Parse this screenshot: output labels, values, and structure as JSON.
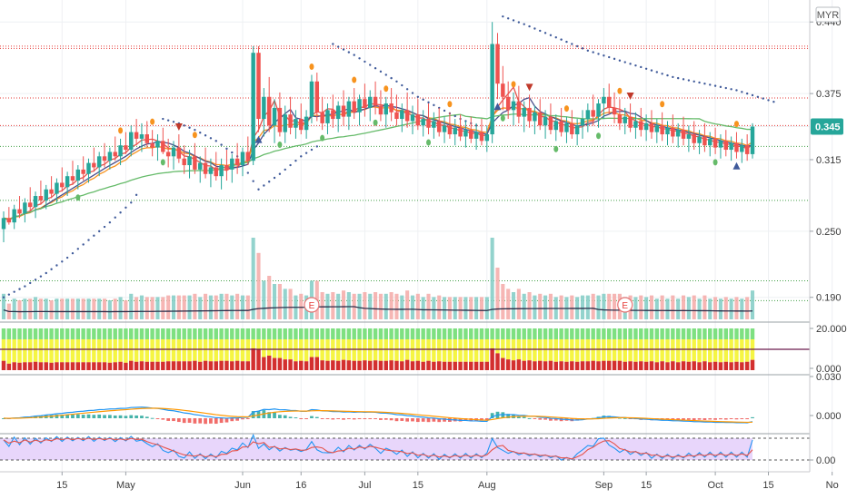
{
  "currency": "MYR",
  "colors": {
    "up": "#26a69a",
    "down": "#ef5350",
    "grid": "#eef0f3",
    "sma_fast": "#e5534b",
    "ema_mid": "#f7931e",
    "sma_slow": "#66bb6a",
    "sma_dark": "#4b4f8c",
    "psar": "#3f5a9a",
    "macd": "#2196f3",
    "signal": "#ff9800",
    "stoch_k": "#2196f3",
    "stoch_d": "#e5534b",
    "stoch_bg": "#e8d6fb",
    "res_line": "#e53935",
    "sup_line": "#43a047",
    "current_price_bg": "#26a69a"
  },
  "chart_data": {
    "type": "candlestick",
    "x_ticks": [
      {
        "label": "15",
        "i": 11
      },
      {
        "label": "May",
        "i": 23
      },
      {
        "label": "Jun",
        "i": 45
      },
      {
        "label": "16",
        "i": 56
      },
      {
        "label": "Jul",
        "i": 68
      },
      {
        "label": "15",
        "i": 78
      },
      {
        "label": "Aug",
        "i": 91
      },
      {
        "label": "Sep",
        "i": 113
      },
      {
        "label": "15",
        "i": 121
      },
      {
        "label": "Oct",
        "i": 134
      },
      {
        "label": "15",
        "i": 144
      },
      {
        "label": "No",
        "i": 156
      }
    ],
    "price_axis": {
      "ticks": [
        "0.440",
        "0.375",
        "0.345",
        "0.315",
        "0.250",
        "0.190"
      ],
      "range": [
        0.17,
        0.455
      ]
    },
    "current_price": {
      "label": "0.345",
      "value": 0.345
    },
    "resistance_levels": [
      0.418,
      0.416,
      0.371,
      0.346
    ],
    "support_levels": [
      0.327,
      0.278,
      0.205,
      0.187
    ],
    "ohlc": [
      [
        0.252,
        0.268,
        0.24,
        0.262
      ],
      [
        0.262,
        0.272,
        0.256,
        0.258
      ],
      [
        0.258,
        0.274,
        0.252,
        0.27
      ],
      [
        0.27,
        0.282,
        0.262,
        0.266
      ],
      [
        0.266,
        0.28,
        0.258,
        0.276
      ],
      [
        0.276,
        0.29,
        0.268,
        0.272
      ],
      [
        0.272,
        0.286,
        0.262,
        0.282
      ],
      [
        0.282,
        0.296,
        0.274,
        0.278
      ],
      [
        0.278,
        0.292,
        0.27,
        0.288
      ],
      [
        0.288,
        0.3,
        0.28,
        0.284
      ],
      [
        0.284,
        0.298,
        0.276,
        0.294
      ],
      [
        0.294,
        0.308,
        0.286,
        0.29
      ],
      [
        0.29,
        0.304,
        0.282,
        0.3
      ],
      [
        0.3,
        0.314,
        0.292,
        0.296
      ],
      [
        0.296,
        0.31,
        0.288,
        0.306
      ],
      [
        0.306,
        0.318,
        0.296,
        0.302
      ],
      [
        0.302,
        0.316,
        0.294,
        0.312
      ],
      [
        0.312,
        0.326,
        0.304,
        0.308
      ],
      [
        0.308,
        0.322,
        0.3,
        0.318
      ],
      [
        0.318,
        0.33,
        0.308,
        0.314
      ],
      [
        0.314,
        0.326,
        0.306,
        0.322
      ],
      [
        0.322,
        0.336,
        0.314,
        0.318
      ],
      [
        0.318,
        0.334,
        0.31,
        0.328
      ],
      [
        0.328,
        0.34,
        0.32,
        0.324
      ],
      [
        0.324,
        0.346,
        0.318,
        0.34
      ],
      [
        0.34,
        0.352,
        0.328,
        0.334
      ],
      [
        0.334,
        0.348,
        0.322,
        0.338
      ],
      [
        0.338,
        0.35,
        0.326,
        0.33
      ],
      [
        0.33,
        0.342,
        0.318,
        0.326
      ],
      [
        0.326,
        0.338,
        0.314,
        0.332
      ],
      [
        0.332,
        0.344,
        0.32,
        0.322
      ],
      [
        0.322,
        0.334,
        0.308,
        0.318
      ],
      [
        0.318,
        0.332,
        0.306,
        0.326
      ],
      [
        0.326,
        0.338,
        0.312,
        0.316
      ],
      [
        0.316,
        0.328,
        0.302,
        0.31
      ],
      [
        0.31,
        0.324,
        0.298,
        0.318
      ],
      [
        0.318,
        0.33,
        0.302,
        0.306
      ],
      [
        0.306,
        0.318,
        0.294,
        0.312
      ],
      [
        0.312,
        0.326,
        0.298,
        0.302
      ],
      [
        0.302,
        0.316,
        0.29,
        0.308
      ],
      [
        0.308,
        0.322,
        0.296,
        0.3
      ],
      [
        0.3,
        0.316,
        0.288,
        0.31
      ],
      [
        0.31,
        0.324,
        0.296,
        0.306
      ],
      [
        0.306,
        0.32,
        0.294,
        0.316
      ],
      [
        0.316,
        0.33,
        0.302,
        0.31
      ],
      [
        0.31,
        0.326,
        0.3,
        0.322
      ],
      [
        0.322,
        0.336,
        0.31,
        0.314
      ],
      [
        0.314,
        0.418,
        0.31,
        0.412
      ],
      [
        0.412,
        0.418,
        0.34,
        0.352
      ],
      [
        0.352,
        0.38,
        0.336,
        0.372
      ],
      [
        0.372,
        0.39,
        0.34,
        0.346
      ],
      [
        0.346,
        0.37,
        0.33,
        0.362
      ],
      [
        0.362,
        0.376,
        0.336,
        0.34
      ],
      [
        0.34,
        0.364,
        0.33,
        0.356
      ],
      [
        0.356,
        0.372,
        0.338,
        0.344
      ],
      [
        0.344,
        0.36,
        0.334,
        0.352
      ],
      [
        0.352,
        0.366,
        0.338,
        0.342
      ],
      [
        0.342,
        0.36,
        0.334,
        0.354
      ],
      [
        0.354,
        0.392,
        0.348,
        0.386
      ],
      [
        0.386,
        0.394,
        0.35,
        0.358
      ],
      [
        0.358,
        0.372,
        0.342,
        0.348
      ],
      [
        0.348,
        0.366,
        0.338,
        0.36
      ],
      [
        0.36,
        0.374,
        0.344,
        0.352
      ],
      [
        0.352,
        0.368,
        0.34,
        0.364
      ],
      [
        0.364,
        0.378,
        0.346,
        0.354
      ],
      [
        0.354,
        0.372,
        0.342,
        0.368
      ],
      [
        0.368,
        0.38,
        0.352,
        0.358
      ],
      [
        0.358,
        0.374,
        0.346,
        0.37
      ],
      [
        0.37,
        0.384,
        0.354,
        0.362
      ],
      [
        0.362,
        0.378,
        0.35,
        0.372
      ],
      [
        0.372,
        0.386,
        0.356,
        0.364
      ],
      [
        0.364,
        0.378,
        0.35,
        0.356
      ],
      [
        0.356,
        0.372,
        0.344,
        0.366
      ],
      [
        0.366,
        0.38,
        0.35,
        0.358
      ],
      [
        0.358,
        0.374,
        0.346,
        0.352
      ],
      [
        0.352,
        0.366,
        0.34,
        0.36
      ],
      [
        0.36,
        0.376,
        0.344,
        0.35
      ],
      [
        0.35,
        0.364,
        0.338,
        0.356
      ],
      [
        0.356,
        0.37,
        0.342,
        0.346
      ],
      [
        0.346,
        0.36,
        0.336,
        0.352
      ],
      [
        0.352,
        0.366,
        0.338,
        0.344
      ],
      [
        0.344,
        0.358,
        0.334,
        0.35
      ],
      [
        0.35,
        0.362,
        0.336,
        0.34
      ],
      [
        0.34,
        0.354,
        0.33,
        0.346
      ],
      [
        0.346,
        0.358,
        0.334,
        0.338
      ],
      [
        0.338,
        0.352,
        0.328,
        0.344
      ],
      [
        0.344,
        0.356,
        0.332,
        0.336
      ],
      [
        0.336,
        0.35,
        0.326,
        0.342
      ],
      [
        0.342,
        0.354,
        0.33,
        0.334
      ],
      [
        0.334,
        0.348,
        0.324,
        0.34
      ],
      [
        0.34,
        0.352,
        0.328,
        0.332
      ],
      [
        0.332,
        0.346,
        0.322,
        0.338
      ],
      [
        0.338,
        0.44,
        0.33,
        0.42
      ],
      [
        0.42,
        0.43,
        0.37,
        0.384
      ],
      [
        0.384,
        0.4,
        0.36,
        0.372
      ],
      [
        0.372,
        0.386,
        0.352,
        0.36
      ],
      [
        0.36,
        0.376,
        0.346,
        0.368
      ],
      [
        0.368,
        0.382,
        0.348,
        0.354
      ],
      [
        0.354,
        0.368,
        0.34,
        0.362
      ],
      [
        0.362,
        0.374,
        0.344,
        0.35
      ],
      [
        0.35,
        0.364,
        0.338,
        0.358
      ],
      [
        0.358,
        0.37,
        0.342,
        0.346
      ],
      [
        0.346,
        0.36,
        0.334,
        0.354
      ],
      [
        0.354,
        0.366,
        0.338,
        0.342
      ],
      [
        0.342,
        0.356,
        0.332,
        0.35
      ],
      [
        0.35,
        0.362,
        0.336,
        0.34
      ],
      [
        0.34,
        0.354,
        0.33,
        0.348
      ],
      [
        0.348,
        0.36,
        0.334,
        0.338
      ],
      [
        0.338,
        0.352,
        0.328,
        0.346
      ],
      [
        0.346,
        0.36,
        0.334,
        0.352
      ],
      [
        0.352,
        0.366,
        0.34,
        0.36
      ],
      [
        0.36,
        0.374,
        0.346,
        0.354
      ],
      [
        0.354,
        0.37,
        0.344,
        0.366
      ],
      [
        0.366,
        0.38,
        0.352,
        0.372
      ],
      [
        0.372,
        0.384,
        0.356,
        0.362
      ],
      [
        0.362,
        0.376,
        0.348,
        0.356
      ],
      [
        0.356,
        0.37,
        0.342,
        0.348
      ],
      [
        0.348,
        0.362,
        0.338,
        0.354
      ],
      [
        0.354,
        0.366,
        0.34,
        0.344
      ],
      [
        0.344,
        0.358,
        0.334,
        0.35
      ],
      [
        0.35,
        0.362,
        0.336,
        0.342
      ],
      [
        0.342,
        0.356,
        0.332,
        0.348
      ],
      [
        0.348,
        0.36,
        0.334,
        0.34
      ],
      [
        0.34,
        0.352,
        0.33,
        0.346
      ],
      [
        0.346,
        0.358,
        0.332,
        0.338
      ],
      [
        0.338,
        0.35,
        0.328,
        0.344
      ],
      [
        0.344,
        0.356,
        0.33,
        0.336
      ],
      [
        0.336,
        0.348,
        0.326,
        0.342
      ],
      [
        0.342,
        0.354,
        0.328,
        0.334
      ],
      [
        0.334,
        0.346,
        0.322,
        0.338
      ],
      [
        0.338,
        0.35,
        0.324,
        0.33
      ],
      [
        0.33,
        0.342,
        0.32,
        0.336
      ],
      [
        0.336,
        0.348,
        0.322,
        0.328
      ],
      [
        0.328,
        0.34,
        0.318,
        0.334
      ],
      [
        0.334,
        0.344,
        0.32,
        0.326
      ],
      [
        0.326,
        0.338,
        0.316,
        0.332
      ],
      [
        0.332,
        0.342,
        0.318,
        0.324
      ],
      [
        0.324,
        0.336,
        0.314,
        0.33
      ],
      [
        0.33,
        0.34,
        0.316,
        0.322
      ],
      [
        0.322,
        0.334,
        0.312,
        0.328
      ],
      [
        0.328,
        0.338,
        0.314,
        0.32
      ],
      [
        0.32,
        0.348,
        0.316,
        0.345
      ]
    ],
    "volume_panel": {
      "y_tick": ""
    },
    "breadth_panel": {
      "ticks": [
        "20.000",
        "0.000"
      ]
    },
    "macd_panel": {
      "ticks": [
        "0.030",
        "0.000"
      ]
    },
    "stoch_panel": {
      "ticks": [
        "0.00"
      ]
    }
  },
  "markers": {
    "earnings": [
      {
        "label": "E",
        "i": 58
      },
      {
        "label": "E",
        "i": 117
      }
    ]
  }
}
